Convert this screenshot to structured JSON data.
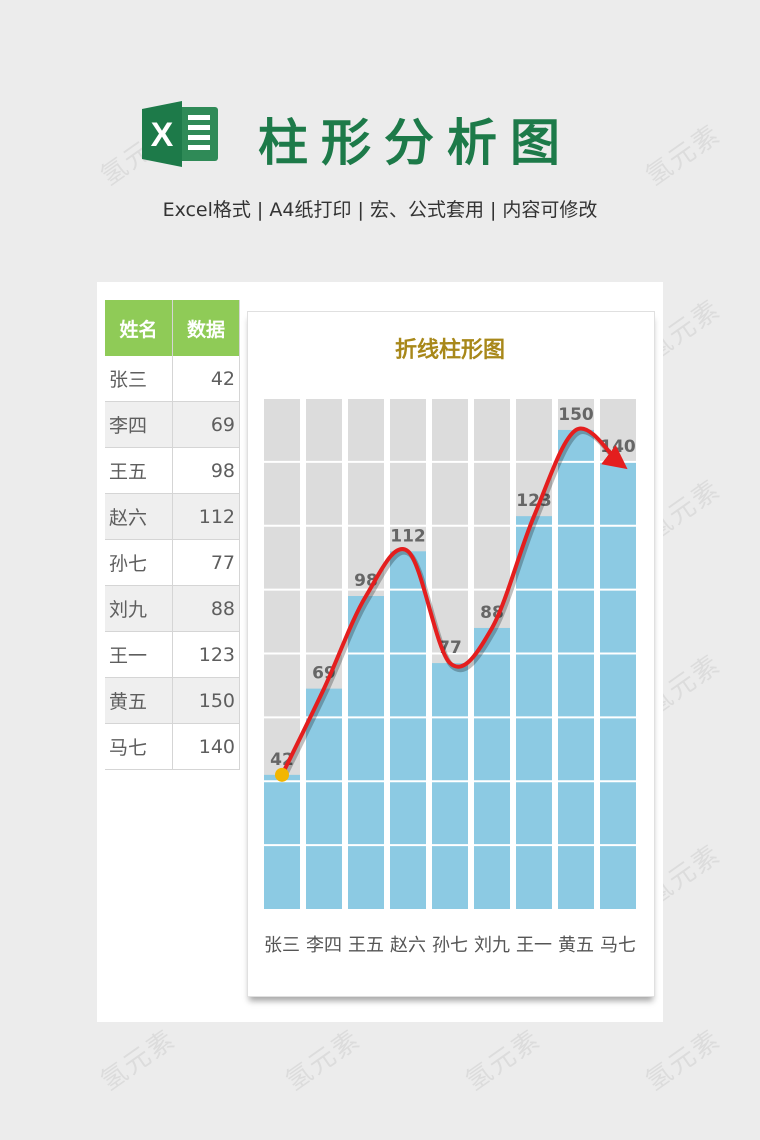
{
  "header": {
    "title": "柱形分析图",
    "subtitle": "Excel格式 |  A4纸打印 | 宏、公式套用 | 内容可修改",
    "logo_letter": "X"
  },
  "watermark": "氢元素",
  "table": {
    "headers": [
      "姓名",
      "数据"
    ],
    "rows": [
      {
        "name": "张三",
        "value": "42"
      },
      {
        "name": "李四",
        "value": "69"
      },
      {
        "name": "王五",
        "value": "98"
      },
      {
        "name": "赵六",
        "value": "112"
      },
      {
        "name": "孙七",
        "value": "77"
      },
      {
        "name": "刘九",
        "value": "88"
      },
      {
        "name": "王一",
        "value": "123"
      },
      {
        "name": "黄五",
        "value": "150"
      },
      {
        "name": "马七",
        "value": "140"
      }
    ]
  },
  "chart_data": {
    "type": "bar",
    "title": "折线柱形图",
    "categories": [
      "张三",
      "李四",
      "王五",
      "赵六",
      "孙七",
      "刘九",
      "王一",
      "黄五",
      "马七"
    ],
    "values": [
      42,
      69,
      98,
      112,
      77,
      88,
      123,
      150,
      140
    ],
    "background_bar_value": 160,
    "ylim": [
      0,
      160
    ],
    "grid": true,
    "colors": {
      "bar": "#8ccae3",
      "background_bar": "#dcdcdc",
      "trend_line": "#e41e1e",
      "start_marker": "#f2b600",
      "title": "#a8881a",
      "table_header": "#8fcb57",
      "brand_green": "#1d7a49"
    }
  }
}
